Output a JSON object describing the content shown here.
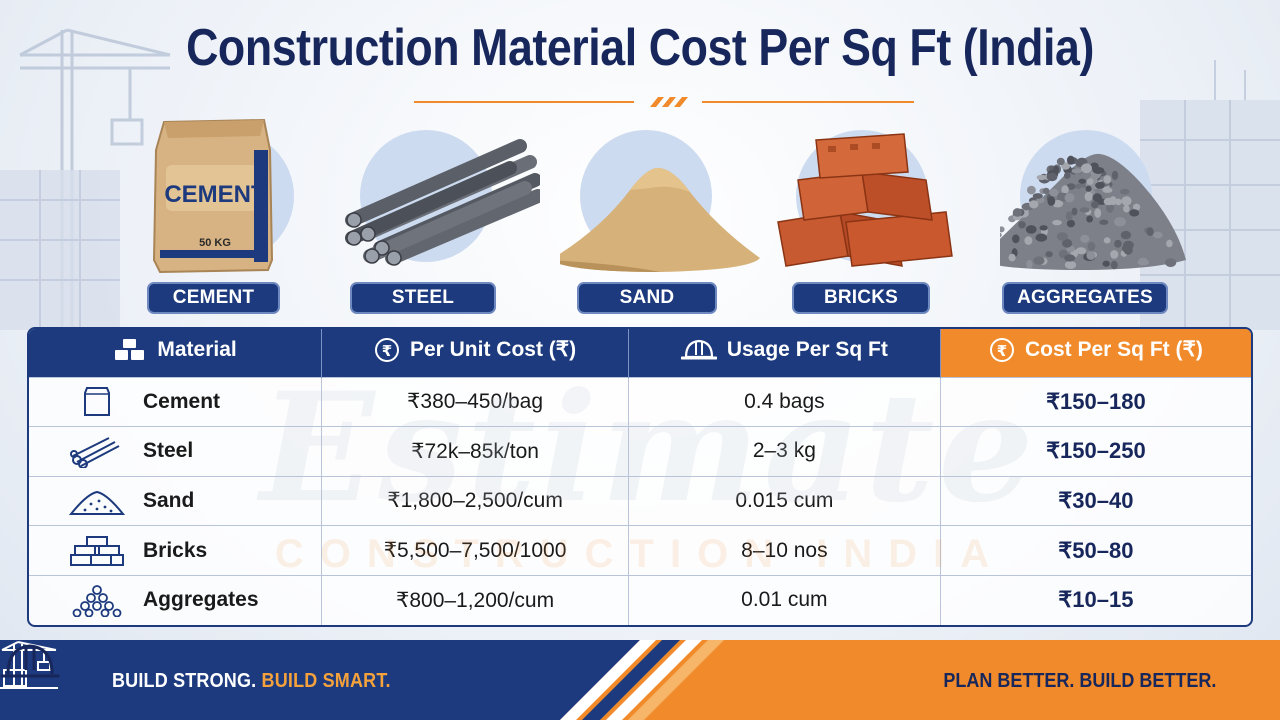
{
  "page": {
    "title": "Construction Material Cost Per Sq Ft (India)",
    "watermark": "Estimate",
    "watermark_sub": "CONSTRUCTION INDIA"
  },
  "materials": [
    {
      "label": "CEMENT",
      "bag_text": "CEMENT",
      "bag_weight": "50 KG"
    },
    {
      "label": "STEEL"
    },
    {
      "label": "SAND"
    },
    {
      "label": "BRICKS"
    },
    {
      "label": "AGGREGATES"
    }
  ],
  "table": {
    "headers": [
      "Material",
      "Per Unit Cost (₹)",
      "Usage Per Sq Ft",
      "Cost Per Sq Ft (₹)"
    ],
    "rows": [
      {
        "icon": "cement-bag-icon",
        "material": "Cement",
        "unit_cost": "₹380–450/bag",
        "usage": "0.4 bags",
        "cost": "₹150–180"
      },
      {
        "icon": "steel-rods-icon",
        "material": "Steel",
        "unit_cost": "₹72k–85k/ton",
        "usage": "2–3 kg",
        "cost": "₹150–250"
      },
      {
        "icon": "sand-pile-icon",
        "material": "Sand",
        "unit_cost": "₹1,800–2,500/cum",
        "usage": "0.015 cum",
        "cost": "₹30–40"
      },
      {
        "icon": "bricks-icon",
        "material": "Bricks",
        "unit_cost": "₹5,500–7,500/1000",
        "usage": "8–10 nos",
        "cost": "₹50–80"
      },
      {
        "icon": "aggregates-icon",
        "material": "Aggregates",
        "unit_cost": "₹800–1,200/cum",
        "usage": "0.01 cum",
        "cost": "₹10–15"
      }
    ]
  },
  "footer": {
    "left_main": "BUILD STRONG.",
    "left_accent": "BUILD SMART.",
    "right": "PLAN BETTER. BUILD BETTER."
  },
  "colors": {
    "navy": "#1c3a7d",
    "orange": "#f08a2a",
    "title": "#17275c"
  }
}
